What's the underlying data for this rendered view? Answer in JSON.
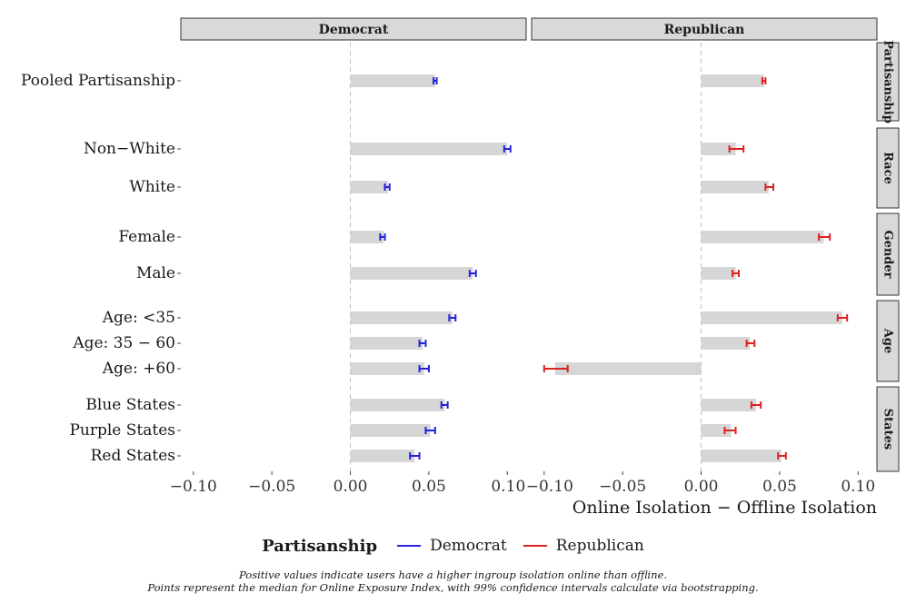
{
  "chart_data": {
    "type": "bar",
    "orientation": "horizontal",
    "panels": [
      "Democrat",
      "Republican"
    ],
    "facets": [
      "Partisanship",
      "Race",
      "Gender",
      "Age",
      "States"
    ],
    "groups": [
      {
        "facet": "Partisanship",
        "categories": [
          "Pooled Partisanship"
        ]
      },
      {
        "facet": "Race",
        "categories": [
          "Non−White",
          "White"
        ]
      },
      {
        "facet": "Gender",
        "categories": [
          "Female",
          "Male"
        ]
      },
      {
        "facet": "Age",
        "categories": [
          "Age: <35",
          "Age: 35 − 60",
          "Age: +60"
        ]
      },
      {
        "facet": "States",
        "categories": [
          "Blue States",
          "Purple States",
          "Red States"
        ]
      }
    ],
    "series": [
      {
        "name": "Democrat",
        "color": "#2222dd",
        "values": [
          0.054,
          0.1,
          0.024,
          0.021,
          0.078,
          0.065,
          0.046,
          0.047,
          0.06,
          0.051,
          0.041
        ],
        "ci_low": [
          0.053,
          0.098,
          0.022,
          0.019,
          0.076,
          0.063,
          0.044,
          0.044,
          0.058,
          0.048,
          0.038
        ],
        "ci_high": [
          0.055,
          0.102,
          0.025,
          0.022,
          0.08,
          0.067,
          0.048,
          0.05,
          0.062,
          0.054,
          0.044
        ]
      },
      {
        "name": "Republican",
        "color": "#dd2222",
        "values": [
          0.04,
          0.022,
          0.043,
          0.078,
          0.022,
          0.09,
          0.031,
          -0.093,
          0.035,
          0.019,
          0.051
        ],
        "ci_low": [
          0.039,
          0.018,
          0.041,
          0.075,
          0.02,
          0.087,
          0.029,
          -0.1,
          0.032,
          0.015,
          0.049
        ],
        "ci_high": [
          0.041,
          0.027,
          0.046,
          0.082,
          0.024,
          0.093,
          0.034,
          -0.085,
          0.038,
          0.022,
          0.054
        ]
      }
    ],
    "x_ticks": [
      -0.1,
      -0.05,
      0.0,
      0.05,
      0.1
    ],
    "x_tick_labels": [
      "−0.10",
      "−0.05",
      "0.00",
      "0.05",
      "0.10"
    ],
    "xlim": [
      -0.108,
      0.112
    ],
    "xlabel": "Online Isolation − Offline Isolation",
    "ylabel": "",
    "legend": {
      "title": "Partisanship",
      "position": "bottom"
    }
  },
  "caption": {
    "line1": "Positive values indicate users have a higher ingroup isolation online than offline.",
    "line2": "Points represent the median for Online Exposure Index, with 99% confidence intervals calculate via bootstrapping."
  }
}
